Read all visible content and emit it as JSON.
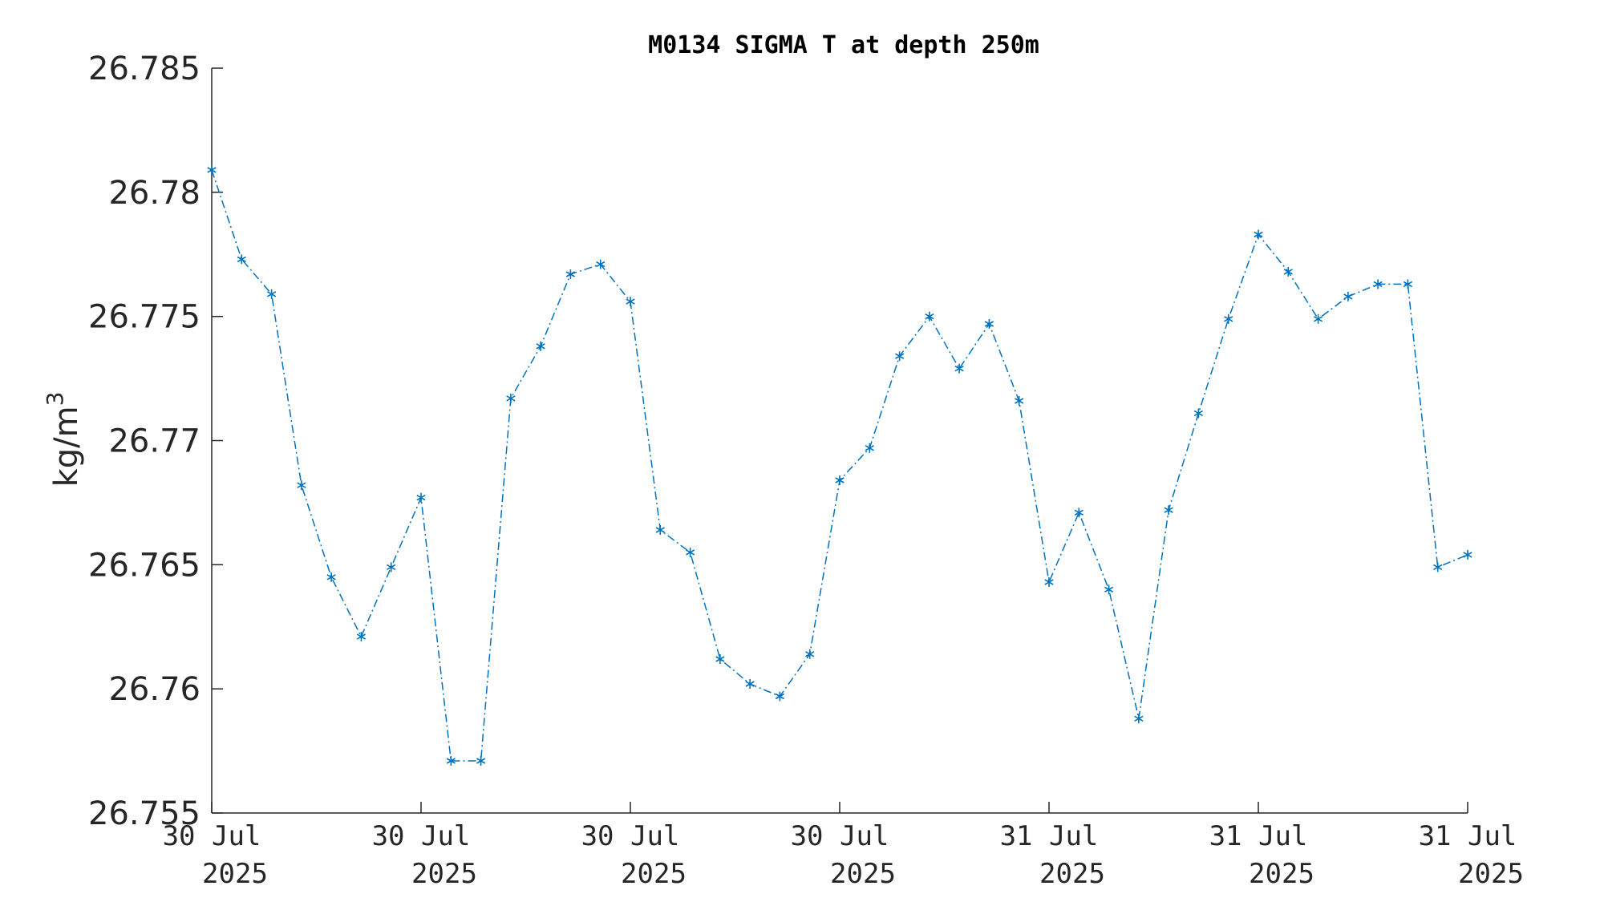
{
  "chart_data": {
    "type": "line",
    "title": "M0134 SIGMA T at depth 250m",
    "ylabel": "kg/m",
    "ylabel_sup": "3",
    "xlabel": "",
    "ylim": [
      26.755,
      26.785
    ],
    "yticks": [
      26.755,
      26.76,
      26.765,
      26.77,
      26.775,
      26.78,
      26.785
    ],
    "ytick_labels": [
      "26.755",
      "26.76",
      "26.765",
      "26.77",
      "26.775",
      "26.78",
      "26.785"
    ],
    "xticks": [
      {
        "line1": "30 Jul",
        "line2": "2025"
      },
      {
        "line1": "30 Jul",
        "line2": "2025"
      },
      {
        "line1": "30 Jul",
        "line2": "2025"
      },
      {
        "line1": "30 Jul",
        "line2": "2025"
      },
      {
        "line1": "31 Jul",
        "line2": "2025"
      },
      {
        "line1": "31 Jul",
        "line2": "2025"
      },
      {
        "line1": "31 Jul",
        "line2": "2025"
      }
    ],
    "grid": false,
    "line_style": "dash-dot",
    "marker": "asterisk",
    "color": "#0072BD",
    "series": [
      {
        "values": [
          26.7809,
          26.7773,
          26.7759,
          26.7682,
          26.7645,
          26.7621,
          26.7649,
          26.7677,
          26.7571,
          26.7571,
          26.7717,
          26.7738,
          26.7767,
          26.7771,
          26.7756,
          26.7664,
          26.7655,
          26.7612,
          26.7602,
          26.7597,
          26.7614,
          26.7684,
          26.7697,
          26.7734,
          26.775,
          26.7729,
          26.7747,
          26.7716,
          26.7643,
          26.7671,
          26.764,
          26.7588,
          26.7672,
          26.7711,
          26.7749,
          26.7783,
          26.7768,
          26.7749,
          26.7758,
          26.7763,
          26.7763,
          26.7649,
          26.7654
        ]
      }
    ]
  }
}
